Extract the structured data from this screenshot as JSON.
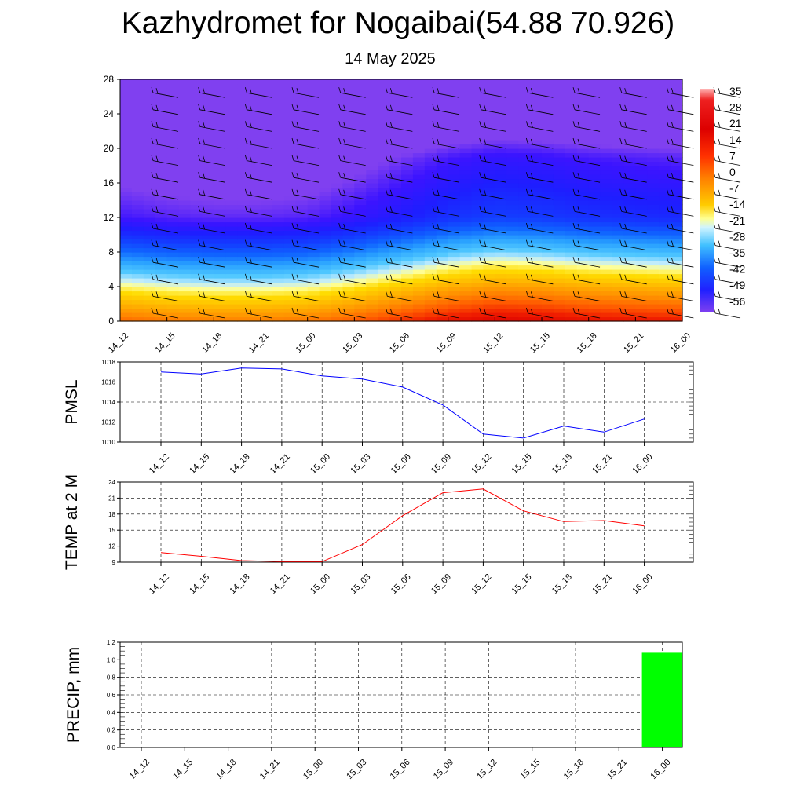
{
  "header": {
    "title": "Kazhydromet for Nogaibai(54.88 70.926)",
    "subtitle": "14 May 2025"
  },
  "time_labels": [
    "14_12",
    "14_15",
    "14_18",
    "14_21",
    "15_00",
    "15_03",
    "15_06",
    "15_09",
    "15_12",
    "15_15",
    "15_18",
    "15_21",
    "16_00"
  ],
  "colors": {
    "pmsl_line": "#0000ff",
    "temp_line": "#ff0000",
    "precip_bar": "#00ff00",
    "grid": "#000000",
    "barbs": "#000000"
  },
  "chart_data": [
    {
      "type": "heatmap",
      "name": "temperature-wind-profile",
      "x": [
        "14_12",
        "14_15",
        "14_18",
        "14_21",
        "15_00",
        "15_03",
        "15_06",
        "15_09",
        "15_12",
        "15_15",
        "15_18",
        "15_21",
        "16_00"
      ],
      "y_ticks": [
        0,
        4,
        8,
        12,
        16,
        20,
        24,
        28
      ],
      "ylim": [
        0,
        28
      ],
      "colorbar_labels": [
        "35",
        "28",
        "21",
        "14",
        "7",
        "0",
        "-7",
        "-14",
        "-21",
        "-28",
        "-35",
        "-42",
        "-49",
        "-56"
      ],
      "colorbar_range": [
        -63,
        35
      ],
      "surface_values": [
        12,
        10,
        9,
        9,
        10,
        14,
        19,
        24,
        27,
        26,
        24,
        23,
        22
      ],
      "lapse_rate_per_unit": -5.7,
      "wind_barbs": true
    },
    {
      "type": "line",
      "name": "pressure",
      "ylabel": "PMSL",
      "categories": [
        "14_12",
        "14_15",
        "14_18",
        "14_21",
        "15_00",
        "15_03",
        "15_06",
        "15_09",
        "15_12",
        "15_15",
        "15_18",
        "15_21",
        "16_00"
      ],
      "values": [
        1017.0,
        1016.8,
        1017.4,
        1017.3,
        1016.6,
        1016.3,
        1015.5,
        1013.7,
        1010.8,
        1010.4,
        1011.6,
        1011.0,
        1012.3
      ],
      "ylim": [
        1010,
        1018
      ],
      "y_ticks": [
        1010,
        1012,
        1014,
        1016,
        1018
      ],
      "grid": true
    },
    {
      "type": "line",
      "name": "temperature-2m",
      "ylabel": "TEMP at 2 M",
      "categories": [
        "14_12",
        "14_15",
        "14_18",
        "14_21",
        "15_00",
        "15_03",
        "15_06",
        "15_09",
        "15_12",
        "15_15",
        "15_18",
        "15_21",
        "16_00"
      ],
      "values": [
        10.8,
        10.1,
        9.3,
        9.1,
        9.1,
        12.3,
        17.7,
        22.0,
        22.7,
        18.6,
        16.6,
        16.8,
        15.8
      ],
      "ylim": [
        9,
        24
      ],
      "y_ticks": [
        9,
        12,
        15,
        18,
        21,
        24
      ],
      "grid": true
    },
    {
      "type": "bar",
      "name": "precipitation",
      "ylabel": "PRECIP, mm",
      "categories": [
        "14_12",
        "14_15",
        "14_18",
        "14_21",
        "15_00",
        "15_03",
        "15_06",
        "15_09",
        "15_12",
        "15_15",
        "15_18",
        "15_21",
        "16_00"
      ],
      "values": [
        0,
        0,
        0,
        0,
        0,
        0,
        0,
        0,
        0,
        0,
        0,
        0,
        1.08
      ],
      "ylim": [
        0,
        1.2
      ],
      "y_ticks": [
        "0.0",
        "0.2",
        "0.4",
        "0.6",
        "0.8",
        "1.0",
        "1.2"
      ],
      "grid": true
    }
  ]
}
